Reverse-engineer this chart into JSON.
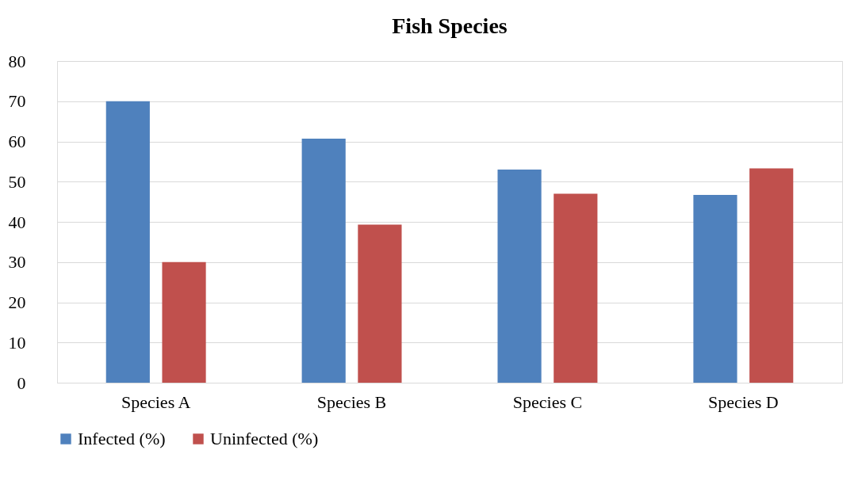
{
  "chart_data": {
    "type": "bar",
    "title": "Fish Species",
    "categories": [
      "Species A",
      "Species B",
      "Species C",
      "Species D"
    ],
    "series": [
      {
        "name": "Infected (%)",
        "color": "#4f81bd",
        "values": [
          70,
          60.7,
          53.0,
          46.7
        ]
      },
      {
        "name": "Uninfected (%)",
        "color": "#c0504d",
        "values": [
          30,
          39.3,
          47.0,
          53.3
        ]
      }
    ],
    "ylim": [
      0,
      80
    ],
    "yticks": [
      0,
      10,
      20,
      30,
      40,
      50,
      60,
      70,
      80
    ],
    "grid": "y",
    "legend": "bottom"
  }
}
